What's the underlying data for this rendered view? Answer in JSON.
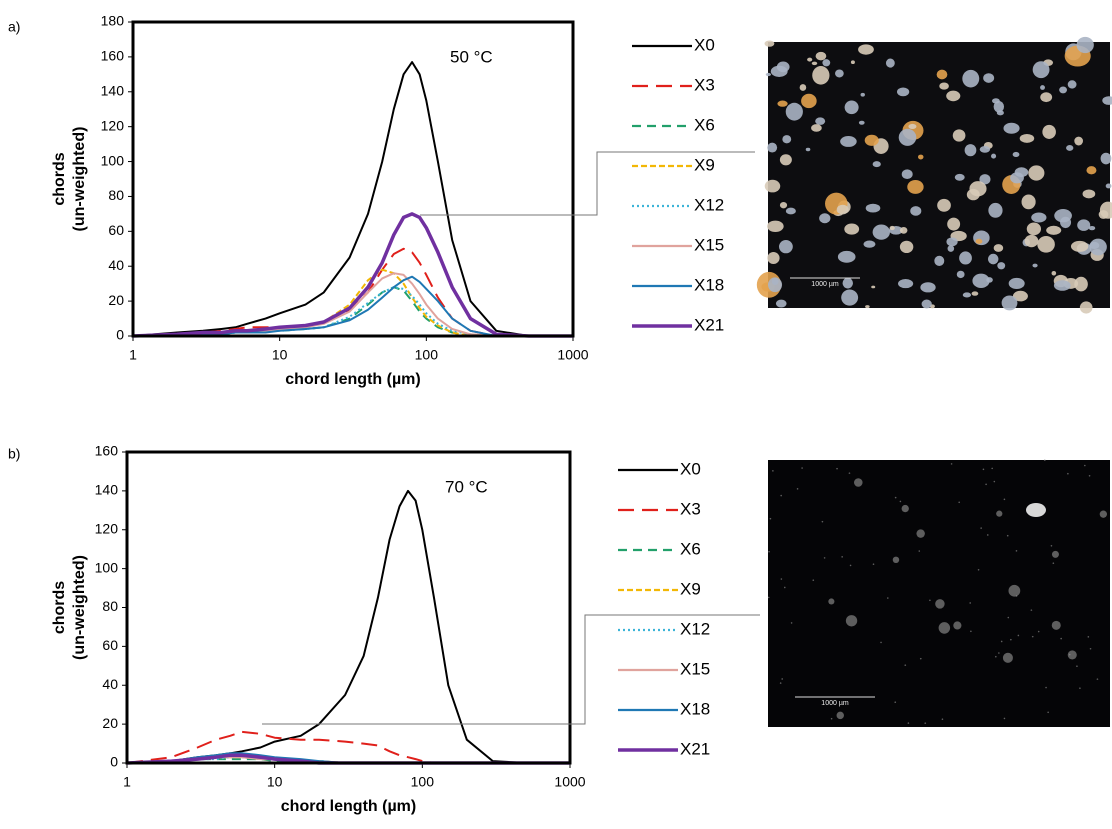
{
  "chart_data": [
    {
      "type": "line",
      "panel_label": "a)",
      "annotation": "50 °C",
      "xlabel": "chord length (µm)",
      "ylabel": [
        "chords",
        "(un-weighted)"
      ],
      "xlog": true,
      "xlim": [
        1,
        1000
      ],
      "xticks": [
        1,
        10,
        100,
        1000
      ],
      "ylim": [
        0,
        180
      ],
      "yticks": [
        0,
        20,
        40,
        60,
        80,
        100,
        120,
        140,
        160,
        180
      ],
      "x": [
        1,
        2,
        3,
        4,
        5,
        6,
        8,
        10,
        15,
        20,
        30,
        40,
        50,
        60,
        70,
        80,
        90,
        100,
        120,
        150,
        200,
        300,
        500,
        1000
      ],
      "series": [
        {
          "name": "X0",
          "color": "#000000",
          "style": "solid",
          "values": [
            0,
            2,
            3,
            4,
            5,
            7,
            10,
            13,
            18,
            25,
            45,
            70,
            100,
            130,
            150,
            157,
            150,
            135,
            100,
            55,
            20,
            3,
            0,
            0
          ]
        },
        {
          "name": "X3",
          "color": "#e0201b",
          "style": "long-dash",
          "values": [
            0,
            1,
            2,
            3,
            4,
            5,
            5,
            5,
            6,
            8,
            15,
            25,
            38,
            47,
            50,
            48,
            42,
            35,
            22,
            10,
            3,
            0,
            0,
            0
          ]
        },
        {
          "name": "X6",
          "color": "#22a06b",
          "style": "dash",
          "values": [
            0,
            0,
            1,
            2,
            2,
            3,
            3,
            3,
            4,
            5,
            10,
            18,
            25,
            28,
            26,
            20,
            14,
            10,
            5,
            2,
            0,
            0,
            0,
            0
          ]
        },
        {
          "name": "X9",
          "color": "#f2b705",
          "style": "short-dash",
          "values": [
            0,
            0,
            1,
            2,
            3,
            3,
            4,
            4,
            5,
            8,
            18,
            32,
            38,
            36,
            30,
            22,
            16,
            11,
            6,
            2,
            0,
            0,
            0,
            0
          ]
        },
        {
          "name": "X12",
          "color": "#3cb4d8",
          "style": "dotted",
          "values": [
            0,
            0,
            1,
            1,
            2,
            2,
            3,
            3,
            4,
            5,
            11,
            19,
            25,
            28,
            27,
            23,
            18,
            13,
            7,
            3,
            1,
            0,
            0,
            0
          ]
        },
        {
          "name": "X15",
          "color": "#e0a39d",
          "style": "solid",
          "values": [
            0,
            0,
            1,
            2,
            2,
            3,
            3,
            4,
            5,
            7,
            14,
            25,
            33,
            36,
            35,
            30,
            24,
            18,
            10,
            4,
            1,
            0,
            0,
            0
          ]
        },
        {
          "name": "X18",
          "color": "#1f78b4",
          "style": "solid",
          "values": [
            0,
            0,
            1,
            1,
            2,
            2,
            2,
            3,
            4,
            5,
            9,
            15,
            22,
            28,
            32,
            34,
            31,
            27,
            20,
            10,
            3,
            0,
            0,
            0
          ]
        },
        {
          "name": "X21",
          "color": "#7030a0",
          "style": "bold",
          "values": [
            0,
            1,
            2,
            2,
            3,
            3,
            4,
            5,
            6,
            8,
            16,
            28,
            42,
            58,
            68,
            70,
            68,
            62,
            48,
            28,
            10,
            1,
            0,
            0
          ]
        }
      ]
    },
    {
      "type": "line",
      "panel_label": "b)",
      "annotation": "70 °C",
      "xlabel": "chord length (µm)",
      "ylabel": [
        "chords",
        "(un-weighted)"
      ],
      "xlog": true,
      "xlim": [
        1,
        1000
      ],
      "xticks": [
        1,
        10,
        100,
        1000
      ],
      "ylim": [
        0,
        160
      ],
      "yticks": [
        0,
        20,
        40,
        60,
        80,
        100,
        120,
        140,
        160
      ],
      "x": [
        1,
        2,
        3,
        4,
        5,
        6,
        8,
        10,
        15,
        20,
        30,
        40,
        50,
        60,
        70,
        80,
        90,
        100,
        120,
        150,
        200,
        300,
        500,
        1000
      ],
      "series": [
        {
          "name": "X0",
          "color": "#000000",
          "style": "solid",
          "values": [
            0,
            1,
            3,
            4,
            5,
            6,
            8,
            11,
            14,
            20,
            35,
            55,
            85,
            115,
            132,
            140,
            135,
            120,
            85,
            40,
            12,
            1,
            0,
            0
          ]
        },
        {
          "name": "X3",
          "color": "#e0201b",
          "style": "long-dash",
          "values": [
            0,
            3,
            8,
            12,
            14,
            16,
            15,
            13,
            12,
            12,
            11,
            10,
            9,
            6,
            4,
            3,
            2,
            1,
            0,
            0,
            0,
            0,
            0,
            0
          ]
        },
        {
          "name": "X6",
          "color": "#22a06b",
          "style": "dash",
          "values": [
            0,
            1,
            2,
            2,
            2,
            2,
            2,
            1,
            1,
            1,
            0,
            0,
            0,
            0,
            0,
            0,
            0,
            0,
            0,
            0,
            0,
            0,
            0,
            0
          ]
        },
        {
          "name": "X9",
          "color": "#f2b705",
          "style": "short-dash",
          "values": [
            0,
            1,
            2,
            3,
            3,
            3,
            2,
            2,
            1,
            1,
            0,
            0,
            0,
            0,
            0,
            0,
            0,
            0,
            0,
            0,
            0,
            0,
            0,
            0
          ]
        },
        {
          "name": "X12",
          "color": "#3cb4d8",
          "style": "dotted",
          "values": [
            0,
            1,
            2,
            2,
            3,
            3,
            2,
            2,
            1,
            1,
            0,
            0,
            0,
            0,
            0,
            0,
            0,
            0,
            0,
            0,
            0,
            0,
            0,
            0
          ]
        },
        {
          "name": "X15",
          "color": "#e0a39d",
          "style": "solid",
          "values": [
            0,
            1,
            2,
            3,
            3,
            3,
            2,
            2,
            1,
            1,
            0,
            0,
            0,
            0,
            0,
            0,
            0,
            0,
            0,
            0,
            0,
            0,
            0,
            0
          ]
        },
        {
          "name": "X18",
          "color": "#1f78b4",
          "style": "solid",
          "values": [
            0,
            1,
            3,
            4,
            5,
            5,
            4,
            3,
            2,
            1,
            0,
            0,
            0,
            0,
            0,
            0,
            0,
            0,
            0,
            0,
            0,
            0,
            0,
            0
          ]
        },
        {
          "name": "X21",
          "color": "#7030a0",
          "style": "bold",
          "values": [
            0,
            1,
            2,
            3,
            4,
            4,
            3,
            2,
            1,
            0,
            0,
            0,
            0,
            0,
            0,
            0,
            0,
            0,
            0,
            0,
            0,
            0,
            0,
            0
          ]
        }
      ]
    }
  ],
  "images": [
    {
      "scale_label": "1000 µm"
    },
    {
      "scale_label": "1000 µm"
    }
  ]
}
